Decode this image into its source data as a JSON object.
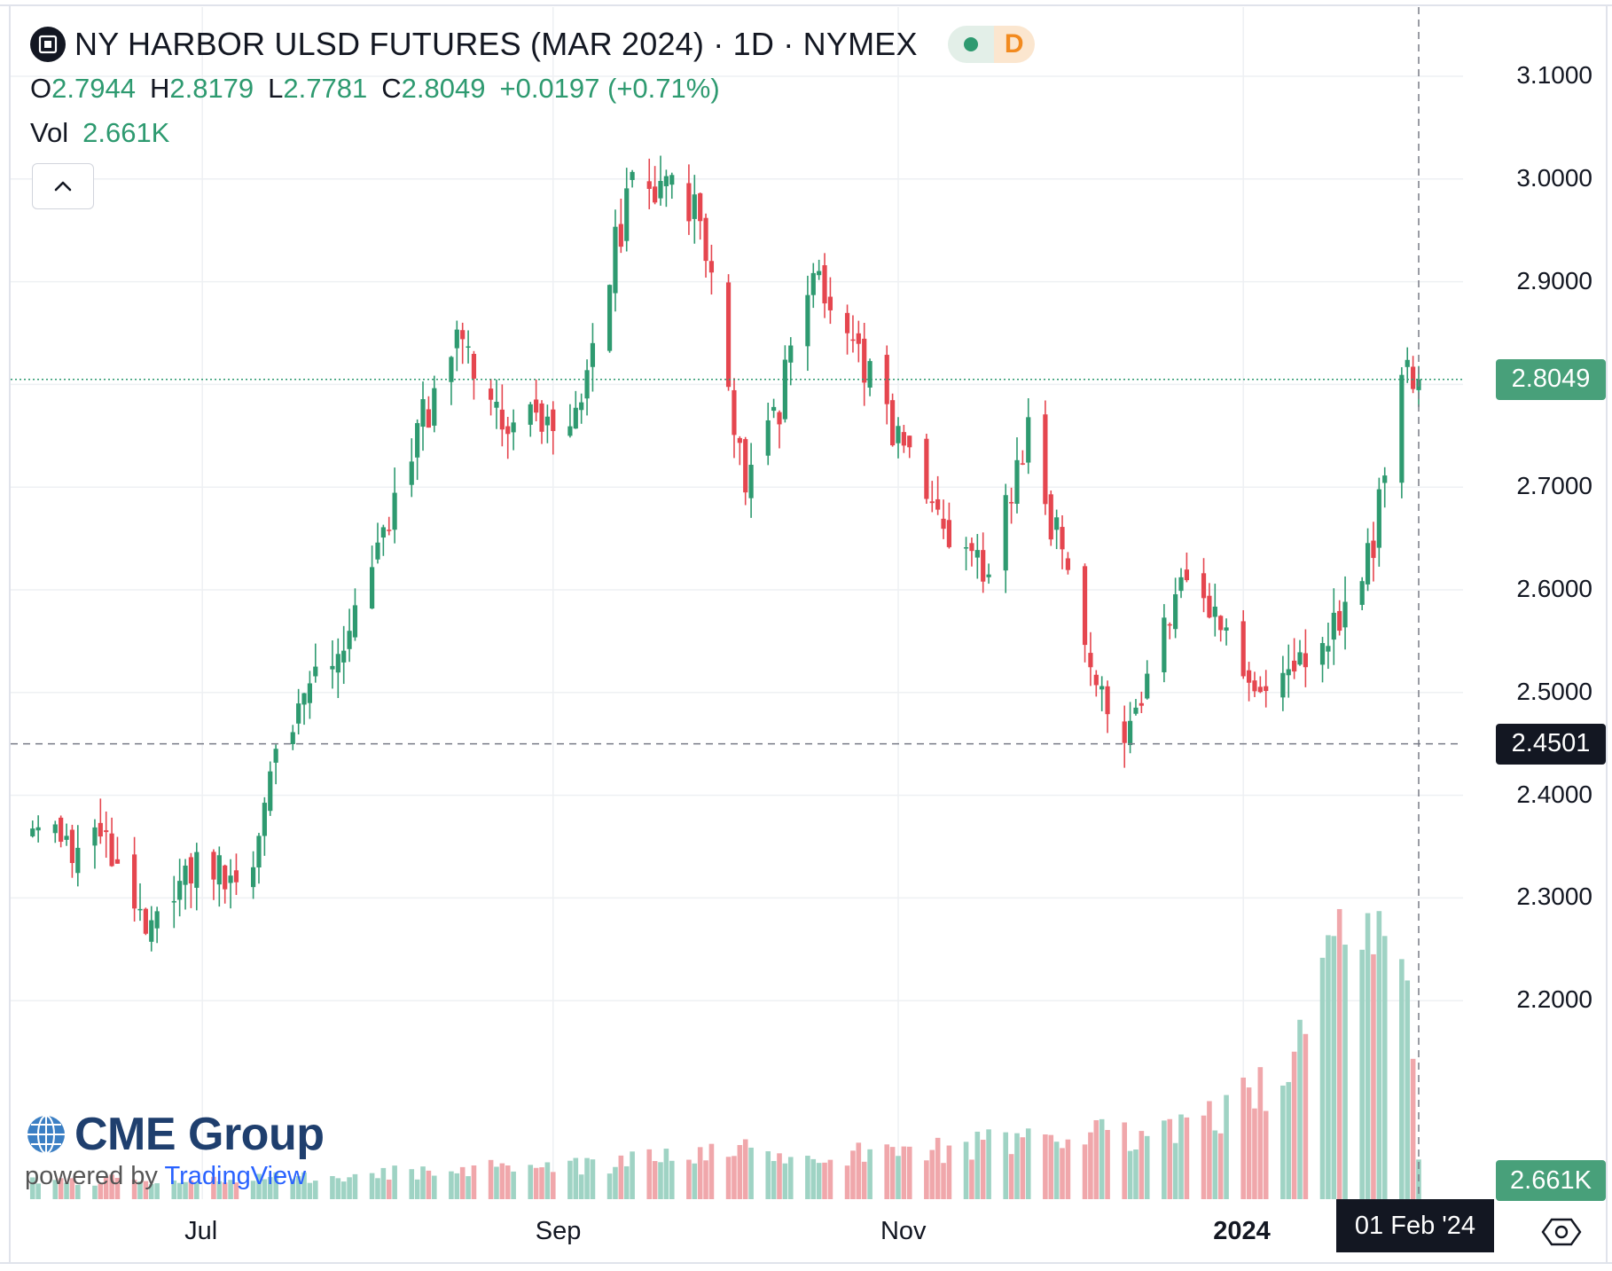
{
  "header": {
    "title": "NY HARBOR ULSD FUTURES (MAR 2024) · 1D · NYMEX",
    "delay_badge": "D",
    "ohlc": [
      {
        "label": "O",
        "value": "2.7944"
      },
      {
        "label": "H",
        "value": "2.8179"
      },
      {
        "label": "L",
        "value": "2.7781"
      },
      {
        "label": "C",
        "value": "2.8049"
      }
    ],
    "change": "+0.0197 (+0.71%)",
    "volume_label": "Vol",
    "volume_value": "2.661K"
  },
  "price_axis": {
    "ticks": [
      "3.1000",
      "3.0000",
      "2.9000",
      "2.8000",
      "2.7000",
      "2.6000",
      "2.5000",
      "2.4000",
      "2.3000",
      "2.2000"
    ],
    "last_price_badge": "2.8049",
    "crosshair_price_badge": "2.4501",
    "volume_badge": "2.661K"
  },
  "time_axis": {
    "ticks": [
      {
        "label": "Jul",
        "bold": false
      },
      {
        "label": "Sep",
        "bold": false
      },
      {
        "label": "Nov",
        "bold": false
      },
      {
        "label": "2024",
        "bold": true
      }
    ],
    "crosshair_time_label": "01 Feb '24"
  },
  "watermark": {
    "brand": "CME Group",
    "powered_by": "powered by",
    "platform": "TradingView"
  },
  "colors": {
    "up": "#2e9a70",
    "down": "#e5464f",
    "volume_up": "#9fd3c4",
    "volume_down": "#f0a7ab",
    "grid": "#eef0f3",
    "last_price_line": "#2e9a70",
    "crosshair": "#787b86"
  },
  "chart_data": {
    "type": "candlestick",
    "interval": "1D",
    "exchange": "NYMEX",
    "x_range": [
      "2023-05-30",
      "2024-02-01"
    ],
    "y_range": [
      2.1,
      3.1
    ],
    "last_close": 2.8049,
    "crosshair": {
      "date": "01 Feb '24",
      "price": 2.4501
    },
    "anchors": [
      {
        "date": "2023-06-01",
        "close": 2.37,
        "volume": 1.2
      },
      {
        "date": "2023-06-16",
        "close": 2.34,
        "volume": 1.3
      },
      {
        "date": "2023-06-20",
        "close": 2.27,
        "volume": 1.0
      },
      {
        "date": "2023-06-28",
        "close": 2.33,
        "volume": 1.1
      },
      {
        "date": "2023-07-10",
        "close": 2.33,
        "volume": 1.4
      },
      {
        "date": "2023-07-14",
        "close": 2.45,
        "volume": 1.5
      },
      {
        "date": "2023-07-27",
        "close": 2.55,
        "volume": 1.6
      },
      {
        "date": "2023-08-10",
        "close": 2.78,
        "volume": 1.9
      },
      {
        "date": "2023-08-15",
        "close": 2.86,
        "volume": 2.0
      },
      {
        "date": "2023-08-23",
        "close": 2.76,
        "volume": 2.1
      },
      {
        "date": "2023-09-05",
        "close": 2.78,
        "volume": 2.2
      },
      {
        "date": "2023-09-15",
        "close": 3.0,
        "volume": 2.6
      },
      {
        "date": "2023-09-27",
        "close": 2.97,
        "volume": 2.8
      },
      {
        "date": "2023-10-05",
        "close": 2.7,
        "volume": 3.2
      },
      {
        "date": "2023-10-10",
        "close": 2.76,
        "volume": 2.9
      },
      {
        "date": "2023-10-17",
        "close": 2.92,
        "volume": 3.0
      },
      {
        "date": "2023-10-25",
        "close": 2.83,
        "volume": 3.1
      },
      {
        "date": "2023-11-07",
        "close": 2.67,
        "volume": 3.3
      },
      {
        "date": "2023-11-16",
        "close": 2.61,
        "volume": 3.6
      },
      {
        "date": "2023-11-24",
        "close": 2.75,
        "volume": 3.9
      },
      {
        "date": "2023-12-06",
        "close": 2.51,
        "volume": 4.4
      },
      {
        "date": "2023-12-12",
        "close": 2.46,
        "volume": 4.6
      },
      {
        "date": "2023-12-22",
        "close": 2.63,
        "volume": 4.8
      },
      {
        "date": "2024-01-05",
        "close": 2.49,
        "volume": 7.5
      },
      {
        "date": "2024-01-16",
        "close": 2.56,
        "volume": 15.0
      },
      {
        "date": "2024-01-24",
        "close": 2.64,
        "volume": 16.5
      },
      {
        "date": "2024-01-29",
        "close": 2.82,
        "volume": 19.5
      },
      {
        "date": "2024-02-01",
        "close": 2.8049,
        "volume": 2.661
      }
    ],
    "notable_levels": {
      "high": 3.05,
      "low": 2.24,
      "december_low": 2.42
    }
  }
}
